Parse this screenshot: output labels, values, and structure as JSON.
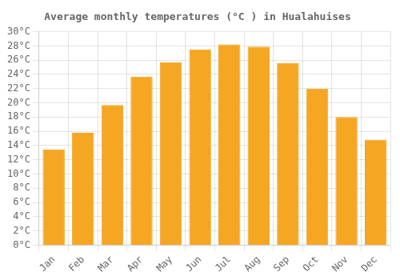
{
  "chart_data": {
    "type": "bar",
    "title": "Average monthly temperatures (°C ) in Hualahuises",
    "categories": [
      "Jan",
      "Feb",
      "Mar",
      "Apr",
      "May",
      "Jun",
      "Jul",
      "Aug",
      "Sep",
      "Oct",
      "Nov",
      "Dec"
    ],
    "values": [
      13.5,
      15.8,
      19.7,
      23.7,
      25.7,
      27.5,
      28.2,
      27.9,
      25.6,
      22.0,
      18.0,
      14.8
    ],
    "color": "#F5A623",
    "ylim": [
      0,
      30
    ],
    "yticks": [
      {
        "value": 0,
        "label": "0°C"
      },
      {
        "value": 2,
        "label": "2°C"
      },
      {
        "value": 4,
        "label": "4°C"
      },
      {
        "value": 6,
        "label": "6°C"
      },
      {
        "value": 8,
        "label": "8°C"
      },
      {
        "value": 10,
        "label": "10°C"
      },
      {
        "value": 12,
        "label": "12°C"
      },
      {
        "value": 14,
        "label": "14°C"
      },
      {
        "value": 16,
        "label": "16°C"
      },
      {
        "value": 18,
        "label": "18°C"
      },
      {
        "value": 20,
        "label": "20°C"
      },
      {
        "value": 22,
        "label": "22°C"
      },
      {
        "value": 24,
        "label": "24°C"
      },
      {
        "value": 26,
        "label": "26°C"
      },
      {
        "value": 28,
        "label": "28°C"
      },
      {
        "value": 30,
        "label": "30°C"
      }
    ],
    "grid": true
  }
}
